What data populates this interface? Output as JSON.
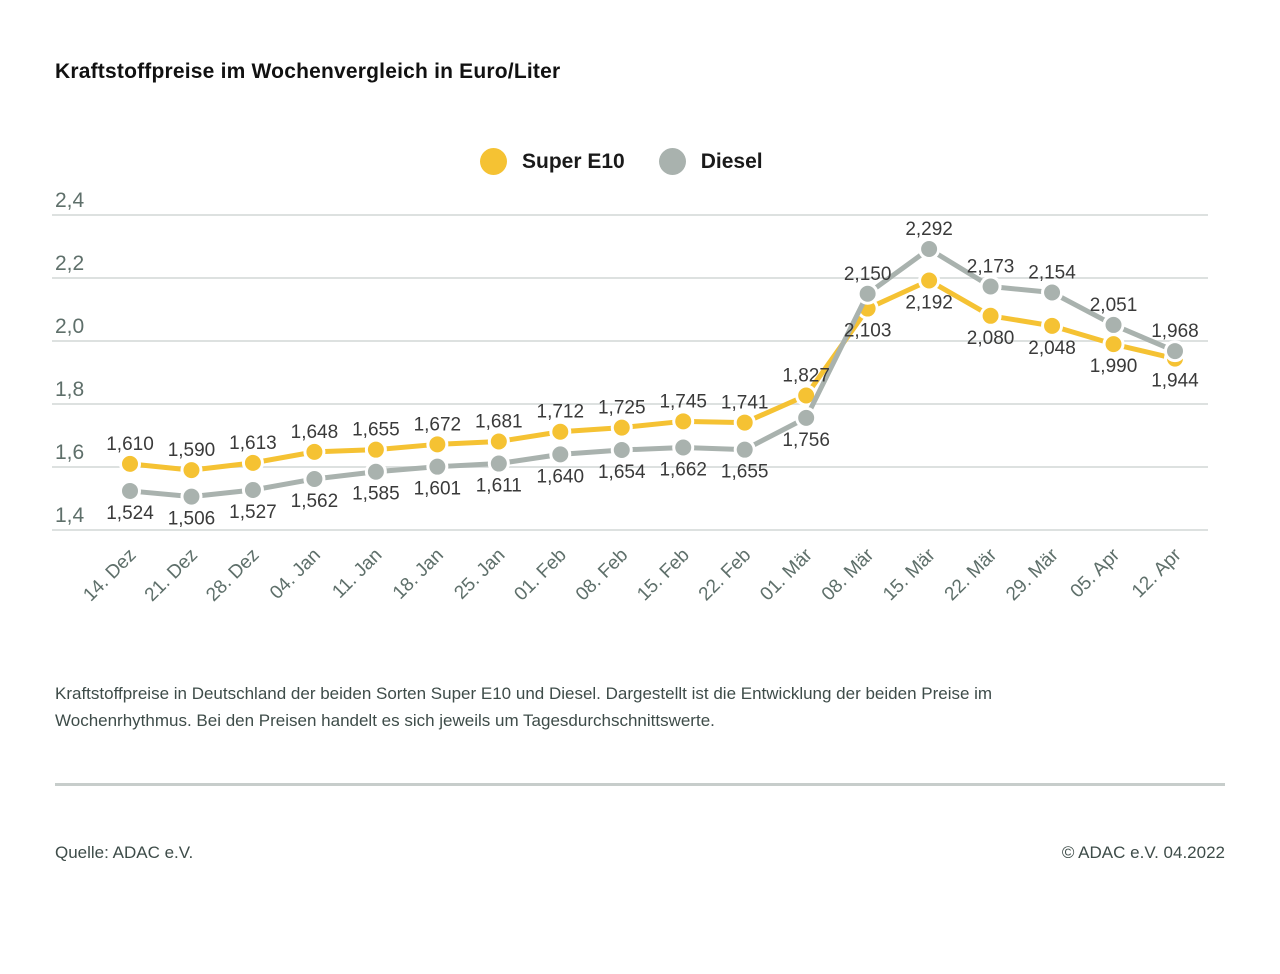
{
  "title": "Kraftstoffpreise im Wochenvergleich in Euro/Liter",
  "chart_data": {
    "type": "line",
    "title": "Kraftstoffpreise im Wochenvergleich in Euro/Liter",
    "unit": "Euro/Liter",
    "categories": [
      "14. Dez",
      "21. Dez",
      "28. Dez",
      "04. Jan",
      "11. Jan",
      "18. Jan",
      "25. Jan",
      "01. Feb",
      "08. Feb",
      "15. Feb",
      "22. Feb",
      "01. Mär",
      "08. Mär",
      "15. Mär",
      "22. Mär",
      "29. Mär",
      "05. Apr",
      "12. Apr"
    ],
    "series": [
      {
        "name": "Super E10",
        "color": "#f5c233",
        "values": [
          1.61,
          1.59,
          1.613,
          1.648,
          1.655,
          1.672,
          1.681,
          1.712,
          1.725,
          1.745,
          1.741,
          1.827,
          2.103,
          2.192,
          2.08,
          2.048,
          1.99,
          1.944
        ],
        "labels": [
          "1,610",
          "1,590",
          "1,613",
          "1,648",
          "1,655",
          "1,672",
          "1,681",
          "1,712",
          "1,725",
          "1,745",
          "1,741",
          "1,827",
          "2,103",
          "2,192",
          "2,080",
          "2,048",
          "1,990",
          "1,944"
        ]
      },
      {
        "name": "Diesel",
        "color": "#a9b2ae",
        "values": [
          1.524,
          1.506,
          1.527,
          1.562,
          1.585,
          1.601,
          1.611,
          1.64,
          1.654,
          1.662,
          1.655,
          1.756,
          2.15,
          2.292,
          2.173,
          2.154,
          2.051,
          1.968
        ],
        "labels": [
          "1,524",
          "1,506",
          "1,527",
          "1,562",
          "1,585",
          "1,601",
          "1,611",
          "1,640",
          "1,654",
          "1,662",
          "1,655",
          "1,756",
          "2,150",
          "2,292",
          "2,173",
          "2,154",
          "2,051",
          "1,968"
        ]
      }
    ],
    "ylim": [
      1.4,
      2.4
    ],
    "yticks": [
      {
        "value": 1.4,
        "label": "1,4"
      },
      {
        "value": 1.6,
        "label": "1,6"
      },
      {
        "value": 1.8,
        "label": "1,8"
      },
      {
        "value": 2.0,
        "label": "2,0"
      },
      {
        "value": 2.2,
        "label": "2,2"
      },
      {
        "value": 2.4,
        "label": "2,4"
      }
    ],
    "grid": "horizontal",
    "legend_position": "top-center",
    "x_label_rotation_deg": -45
  },
  "caption": {
    "lines": [
      "Kraftstoffpreise in Deutschland der beiden Sorten Super E10 und Diesel. Dargestellt ist die Entwicklung der beiden Preise im",
      "Wochenrhythmus. Bei den Preisen handelt es sich jeweils um Tagesdurchschnittswerte."
    ]
  },
  "footer": {
    "source": "Quelle: ADAC e.V.",
    "copyright": "© ADAC e.V. 04.2022"
  },
  "colors": {
    "super_e10": "#f5c233",
    "diesel": "#a9b2ae",
    "grid_line": "#dde1e0",
    "axis_text": "#5e6f6a",
    "data_label_text": "#3a3a3a",
    "divider": "#c7cdcb",
    "marker_halo": "#ffffff"
  }
}
